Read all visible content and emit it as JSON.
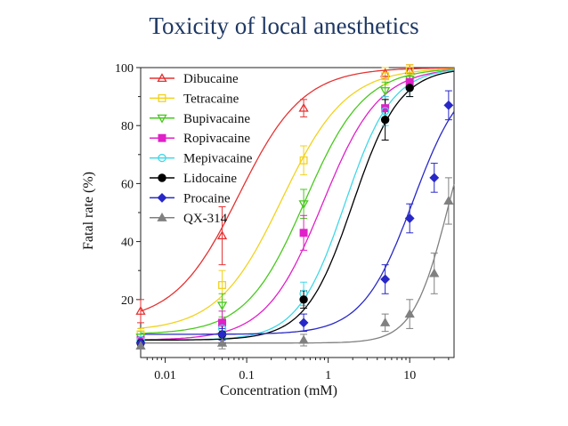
{
  "slide": {
    "title": "Toxicity of  local anesthetics"
  },
  "chart_data": {
    "type": "scatter",
    "xlabel": "Concentration (mM)",
    "ylabel": "Fatal rate (%)",
    "xscale": "log",
    "xlim": [
      0.005,
      35
    ],
    "ylim": [
      0,
      100
    ],
    "xticks": [
      0.01,
      0.1,
      1,
      10
    ],
    "xtick_labels": [
      "0.01",
      "0.1",
      "1",
      "10"
    ],
    "yticks": [
      20,
      40,
      60,
      80,
      100
    ],
    "ytick_labels": [
      "20",
      "40",
      "60",
      "80",
      "100"
    ],
    "grid": false,
    "legend_position": "top-left",
    "series": [
      {
        "name": "Dibucaine",
        "color": "#e53232",
        "marker": "triangle-up-open",
        "x": [
          0.005,
          0.05,
          0.5,
          5,
          10
        ],
        "y": [
          16,
          42,
          86,
          98,
          99
        ],
        "err": [
          4,
          10,
          3,
          2,
          2
        ],
        "fit": {
          "bottom": 12,
          "top": 100,
          "ec50": 0.08,
          "hill": 1.1
        }
      },
      {
        "name": "Tetracaine",
        "color": "#f2d21e",
        "marker": "square-open",
        "x": [
          0.005,
          0.05,
          0.5,
          5,
          10
        ],
        "y": [
          8,
          25,
          68,
          97,
          99
        ],
        "err": [
          2,
          5,
          5,
          3,
          2
        ],
        "fit": {
          "bottom": 9,
          "top": 100,
          "ec50": 0.27,
          "hill": 1.1
        }
      },
      {
        "name": "Bupivacaine",
        "color": "#49c91e",
        "marker": "triangle-down-open",
        "x": [
          0.005,
          0.05,
          0.5,
          5,
          10
        ],
        "y": [
          7,
          18,
          53,
          92,
          96
        ],
        "err": [
          2,
          4,
          5,
          3,
          2
        ],
        "fit": {
          "bottom": 8,
          "top": 100,
          "ec50": 0.52,
          "hill": 1.2
        }
      },
      {
        "name": "Ropivacaine",
        "color": "#e020c8",
        "marker": "square",
        "x": [
          0.005,
          0.05,
          0.5,
          5,
          10
        ],
        "y": [
          6,
          12,
          43,
          86,
          95
        ],
        "err": [
          2,
          4,
          6,
          4,
          2
        ],
        "fit": {
          "bottom": 6,
          "top": 100,
          "ec50": 0.85,
          "hill": 1.25
        }
      },
      {
        "name": "Mepivacaine",
        "color": "#3fd8e8",
        "marker": "circle-open",
        "x": [
          0.005,
          0.05,
          0.5,
          5,
          10
        ],
        "y": [
          6,
          10,
          22,
          85,
          93
        ],
        "err": [
          2,
          3,
          4,
          5,
          3
        ],
        "fit": {
          "bottom": 6,
          "top": 100,
          "ec50": 1.6,
          "hill": 1.5
        }
      },
      {
        "name": "Lidocaine",
        "color": "#000000",
        "marker": "circle",
        "x": [
          0.005,
          0.05,
          0.5,
          5,
          10
        ],
        "y": [
          5,
          8,
          20,
          82,
          93
        ],
        "err": [
          2,
          3,
          3,
          7,
          3
        ],
        "fit": {
          "bottom": 6,
          "top": 100,
          "ec50": 2.0,
          "hill": 1.5
        }
      },
      {
        "name": "Procaine",
        "color": "#2828c8",
        "marker": "diamond",
        "x": [
          0.005,
          0.05,
          0.5,
          5,
          10,
          20,
          30
        ],
        "y": [
          5,
          8,
          12,
          27,
          48,
          62,
          87
        ],
        "err": [
          2,
          2,
          3,
          5,
          5,
          5,
          5
        ],
        "fit": {
          "bottom": 8,
          "top": 100,
          "ec50": 11,
          "hill": 1.4
        }
      },
      {
        "name": "QX-314",
        "color": "#808080",
        "marker": "triangle-up",
        "x": [
          0.005,
          0.05,
          0.5,
          5,
          10,
          20,
          30
        ],
        "y": [
          4,
          5,
          6,
          12,
          15,
          29,
          54
        ],
        "err": [
          1,
          2,
          2,
          3,
          5,
          7,
          8
        ],
        "fit": {
          "bottom": 5,
          "top": 100,
          "ec50": 30,
          "hill": 2.0
        }
      }
    ]
  }
}
